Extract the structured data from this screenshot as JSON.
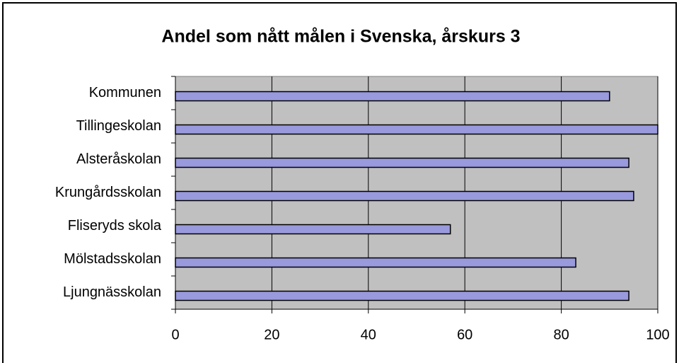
{
  "chart_data": {
    "type": "barh",
    "title": "Andel som nått målen i Svenska, årskurs 3",
    "categories": [
      "Kommunen",
      "Tillingeskolan",
      "Alsteråskolan",
      "Krungårdsskolan",
      "Fliseryds skola",
      "Mölstadsskolan",
      "Ljungnässkolan"
    ],
    "values": [
      90,
      100,
      94,
      95,
      57,
      83,
      94
    ],
    "color": "#9999dd",
    "background": "#c0c0c0",
    "xlim": [
      0,
      100
    ],
    "xticks": [
      0,
      20,
      40,
      60,
      80,
      100
    ],
    "grid": true
  }
}
